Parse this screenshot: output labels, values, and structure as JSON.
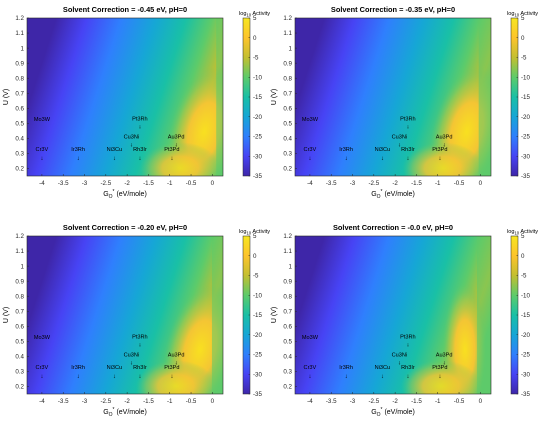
{
  "figure": {
    "colormap": [
      "#3e26a8",
      "#4743f4",
      "#2f7ffd",
      "#16a6d6",
      "#19c0a6",
      "#5dcb6a",
      "#c3bf31",
      "#fdc42c",
      "#f6e620"
    ]
  },
  "chart_data": [
    {
      "type": "heatmap",
      "title": "Solvent Correction = -0.45 eV, pH=0",
      "xlabel_main": "G",
      "xlabel_sub": "O",
      "xlabel_sup": "*",
      "xlabel_rest": " (eV/mole)",
      "ylabel": "U (V)",
      "xlim": [
        -4.35,
        0.25
      ],
      "ylim": [
        0.15,
        1.2
      ],
      "xticks": [
        "-4",
        "-3.5",
        "-3",
        "-2.5",
        "-2",
        "-1.5",
        "-1",
        "-0.5",
        "0"
      ],
      "yticks": [
        "0.2",
        "0.3",
        "0.4",
        "0.5",
        "0.6",
        "0.7",
        "0.8",
        "0.9",
        "1",
        "1.1",
        "1.2"
      ],
      "colorbar": {
        "label_main": "log",
        "label_sub": "10",
        "label_rest": " Activity",
        "range": [
          -35,
          5
        ],
        "ticks": [
          "5",
          "0",
          "-5",
          "-10",
          "-15",
          "-20",
          "-25",
          "-30",
          "-35"
        ]
      },
      "annotations": [
        {
          "label": "Cr3V",
          "x": -4.0
        },
        {
          "label": "Mo3W",
          "x": -4.0
        },
        {
          "label": "Ir3Rh",
          "x": -3.15
        },
        {
          "label": "Ni3Cu",
          "x": -2.3
        },
        {
          "label": "Cu3Ni",
          "x": -1.9
        },
        {
          "label": "Pt3Rh",
          "x": -1.7
        },
        {
          "label": "Rh3Ir",
          "x": -1.7
        },
        {
          "label": "Au3Pd",
          "x": -0.85
        },
        {
          "label": "Pt3Pd",
          "x": -0.95
        }
      ]
    },
    {
      "type": "heatmap",
      "title": "Solvent Correction = -0.35 eV, pH=0",
      "xlabel_main": "G",
      "xlabel_sub": "O",
      "xlabel_sup": "*",
      "xlabel_rest": " (eV/mole)",
      "ylabel": "U (V)",
      "xlim": [
        -4.35,
        0.25
      ],
      "ylim": [
        0.15,
        1.2
      ],
      "xticks": [
        "-4",
        "-3.5",
        "-3",
        "-2.5",
        "-2",
        "-1.5",
        "-1",
        "-0.5",
        "0"
      ],
      "yticks": [
        "0.2",
        "0.3",
        "0.4",
        "0.5",
        "0.6",
        "0.7",
        "0.8",
        "0.9",
        "1",
        "1.1",
        "1.2"
      ],
      "colorbar": {
        "label_main": "log",
        "label_sub": "10",
        "label_rest": " Activity",
        "range": [
          -35,
          5
        ],
        "ticks": [
          "5",
          "0",
          "-5",
          "-10",
          "-15",
          "-20",
          "-25",
          "-30",
          "-35"
        ]
      },
      "annotations": [
        {
          "label": "Cr3V",
          "x": -4.0
        },
        {
          "label": "Mo3W",
          "x": -4.0
        },
        {
          "label": "Ir3Rh",
          "x": -3.15
        },
        {
          "label": "Ni3Cu",
          "x": -2.3
        },
        {
          "label": "Cu3Ni",
          "x": -1.9
        },
        {
          "label": "Pt3Rh",
          "x": -1.7
        },
        {
          "label": "Rh3Ir",
          "x": -1.7
        },
        {
          "label": "Au3Pd",
          "x": -0.85
        },
        {
          "label": "Pt3Pd",
          "x": -0.95
        }
      ]
    },
    {
      "type": "heatmap",
      "title": "Solvent Correction = -0.20 eV, pH=0",
      "xlabel_main": "G",
      "xlabel_sub": "O",
      "xlabel_sup": "*",
      "xlabel_rest": " (eV/mole)",
      "ylabel": "U (V)",
      "xlim": [
        -4.35,
        0.25
      ],
      "ylim": [
        0.15,
        1.2
      ],
      "xticks": [
        "-4",
        "-3.5",
        "-3",
        "-2.5",
        "-2",
        "-1.5",
        "-1",
        "-0.5",
        "0"
      ],
      "yticks": [
        "0.2",
        "0.3",
        "0.4",
        "0.5",
        "0.6",
        "0.7",
        "0.8",
        "0.9",
        "1",
        "1.1",
        "1.2"
      ],
      "colorbar": {
        "label_main": "log",
        "label_sub": "10",
        "label_rest": " Activity",
        "range": [
          -35,
          5
        ],
        "ticks": [
          "5",
          "0",
          "-5",
          "-10",
          "-15",
          "-20",
          "-25",
          "-30",
          "-35"
        ]
      },
      "annotations": [
        {
          "label": "Cr3V",
          "x": -4.0
        },
        {
          "label": "Mo3W",
          "x": -4.0
        },
        {
          "label": "Ir3Rh",
          "x": -3.15
        },
        {
          "label": "Ni3Cu",
          "x": -2.3
        },
        {
          "label": "Cu3Ni",
          "x": -1.9
        },
        {
          "label": "Pt3Rh",
          "x": -1.7
        },
        {
          "label": "Rh3Ir",
          "x": -1.7
        },
        {
          "label": "Au3Pd",
          "x": -0.85
        },
        {
          "label": "Pt3Pd",
          "x": -0.95
        }
      ]
    },
    {
      "type": "heatmap",
      "title": "Solvent Correction = -0.0 eV, pH=0",
      "xlabel_main": "G",
      "xlabel_sub": "O",
      "xlabel_sup": "*",
      "xlabel_rest": " (eV/mole)",
      "ylabel": "U (V)",
      "xlim": [
        -4.35,
        0.25
      ],
      "ylim": [
        0.15,
        1.2
      ],
      "xticks": [
        "-4",
        "-3.5",
        "-3",
        "-2.5",
        "-2",
        "-1.5",
        "-1",
        "-0.5",
        "0"
      ],
      "yticks": [
        "0.2",
        "0.3",
        "0.4",
        "0.5",
        "0.6",
        "0.7",
        "0.8",
        "0.9",
        "1",
        "1.1",
        "1.2"
      ],
      "colorbar": {
        "label_main": "log",
        "label_sub": "10",
        "label_rest": " Activity",
        "range": [
          -35,
          5
        ],
        "ticks": [
          "5",
          "0",
          "-5",
          "-10",
          "-15",
          "-20",
          "-25",
          "-30",
          "-35"
        ]
      },
      "annotations": [
        {
          "label": "Cr3V",
          "x": -4.0
        },
        {
          "label": "Mo3W",
          "x": -4.0
        },
        {
          "label": "Ir3Rh",
          "x": -3.15
        },
        {
          "label": "Ni3Cu",
          "x": -2.3
        },
        {
          "label": "Cu3Ni",
          "x": -1.9
        },
        {
          "label": "Pt3Rh",
          "x": -1.7
        },
        {
          "label": "Rh3Ir",
          "x": -1.7
        },
        {
          "label": "Au3Pd",
          "x": -0.85
        },
        {
          "label": "Pt3Pd",
          "x": -0.95
        }
      ]
    }
  ]
}
